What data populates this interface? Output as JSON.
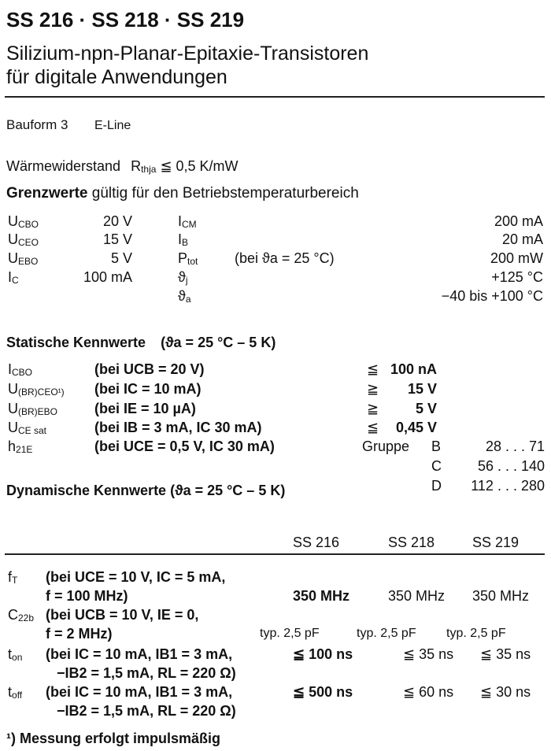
{
  "title": "SS 216 · SS 218 · SS 219",
  "subtitle": [
    "Silizium-npn-Planar-Epitaxie-Transistoren",
    "für digitale Anwendungen"
  ],
  "bauform": {
    "label": "Bauform 3",
    "value": "E-Line"
  },
  "waerme": {
    "label": "Wärmewiderstand",
    "sym": "R",
    "sub": "thja",
    "value": "≦ 0,5 K/mW"
  },
  "grenzwerte": {
    "heading_bold": "Grenzwerte",
    "heading_rest": "gültig für den Betriebstemperaturbereich",
    "left": [
      {
        "sym": "U",
        "sub": "CBO",
        "value": "20 V"
      },
      {
        "sym": "U",
        "sub": "CEO",
        "value": "15 V"
      },
      {
        "sym": "U",
        "sub": "EBO",
        "value": "5 V"
      },
      {
        "sym": "I",
        "sub": "C",
        "value": "100 mA"
      }
    ],
    "right": [
      {
        "sym": "I",
        "sub": "CM",
        "cond": "",
        "value": "200 mA"
      },
      {
        "sym": "I",
        "sub": "B",
        "cond": "",
        "value": "20 mA"
      },
      {
        "sym": "P",
        "sub": "tot",
        "cond": "(bei ϑa = 25 °C)",
        "value": "200 mW"
      },
      {
        "sym": "ϑ",
        "sub": "j",
        "cond": "",
        "value": "+125 °C"
      },
      {
        "sym": "ϑ",
        "sub": "a",
        "cond": "",
        "value": "−40 bis +100 °C"
      }
    ]
  },
  "statisch": {
    "heading_bold": "Statische Kennwerte",
    "heading_rest": "(ϑa = 25 °C – 5 K)",
    "rows": [
      {
        "sym": "I",
        "sub": "CBO",
        "cond": "(bei UCB = 20 V)",
        "rel": "≦",
        "value": "100 nA"
      },
      {
        "sym": "U",
        "sub": "(BR)CEO¹)",
        "cond": "(bei IC = 10 mA)",
        "rel": "≧",
        "value": "15 V"
      },
      {
        "sym": "U",
        "sub": "(BR)EBO",
        "cond": "(bei IE = 10 µA)",
        "rel": "≧",
        "value": "5 V"
      },
      {
        "sym": "U",
        "sub": "CE sat",
        "cond": "(bei IB = 3 mA, IC 30 mA)",
        "rel": "≦",
        "value": "0,45 V"
      },
      {
        "sym": "h",
        "sub": "21E",
        "cond": "(bei UCE = 0,5 V, IC 30 mA)",
        "rel": "",
        "value": ""
      }
    ],
    "gruppe_label": "Gruppe",
    "gruppen": [
      {
        "letter": "B",
        "range": "28 . . . 71"
      },
      {
        "letter": "C",
        "range": "56 . . . 140"
      },
      {
        "letter": "D",
        "range": "112 . . . 280"
      }
    ]
  },
  "dynamisch": {
    "heading_bold": "Dynamische Kennwerte",
    "heading_rest": "(ϑa = 25 °C – 5 K)",
    "columns": [
      "SS 216",
      "SS 218",
      "SS 219"
    ],
    "rows": [
      {
        "sym": "f",
        "sub": "T",
        "cond1": "(bei UCE = 10 V, IC = 5 mA,",
        "cond2": "f = 100 MHz)",
        "values": [
          "350 MHz",
          "350 MHz",
          "350 MHz"
        ]
      },
      {
        "sym": "C",
        "sub": "22b",
        "cond1": "(bei UCB = 10 V, IE = 0,",
        "cond2": "f = 2 MHz)",
        "values": [
          "typ. 2,5 pF",
          "typ. 2,5 pF",
          "typ. 2,5 pF"
        ]
      },
      {
        "sym": "t",
        "sub": "on",
        "cond1": "(bei IC = 10 mA, IB1 = 3 mA,",
        "cond2": "−IB2 = 1,5 mA, RL = 220 Ω)",
        "values": [
          "≦ 100 ns",
          "≦ 35 ns",
          "≦ 35 ns"
        ]
      },
      {
        "sym": "t",
        "sub": "off",
        "cond1": "(bei IC = 10 mA, IB1 = 3 mA,",
        "cond2": "−IB2 = 1,5 mA, RL = 220 Ω)",
        "values": [
          "≦ 500 ns",
          "≦ 60 ns",
          "≦ 30 ns"
        ]
      }
    ]
  },
  "footnote": "¹) Messung erfolgt impulsmäßig"
}
